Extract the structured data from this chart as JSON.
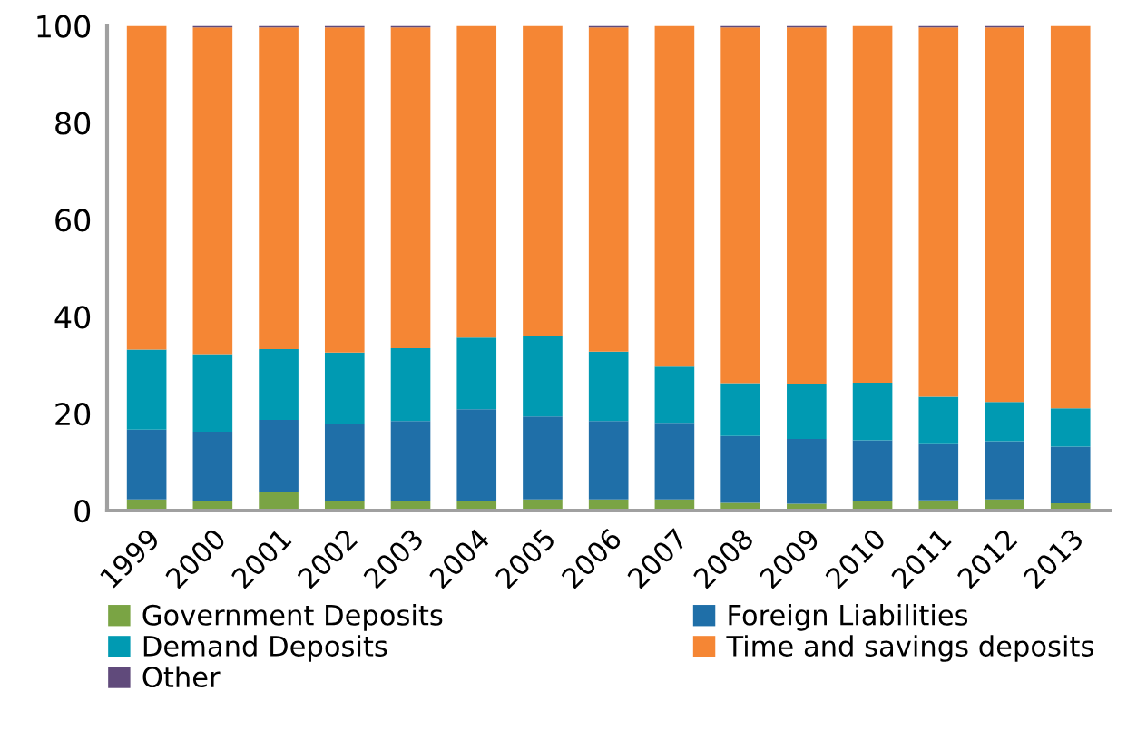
{
  "chart_data": {
    "type": "bar",
    "stacked": true,
    "categories": [
      "1999",
      "2000",
      "2001",
      "2002",
      "2003",
      "2004",
      "2005",
      "2006",
      "2007",
      "2008",
      "2009",
      "2010",
      "2011",
      "2012",
      "2013"
    ],
    "series": [
      {
        "name": "Government Deposits",
        "color": "#7aa444",
        "values": [
          2.3,
          2.0,
          3.9,
          1.9,
          2.0,
          2.0,
          2.3,
          2.3,
          2.3,
          1.6,
          1.4,
          1.9,
          2.1,
          2.3,
          1.5
        ]
      },
      {
        "name": "Foreign Liabilities",
        "color": "#1f6fa8",
        "values": [
          14.4,
          14.3,
          14.8,
          15.9,
          16.5,
          18.9,
          17.1,
          16.2,
          15.8,
          13.8,
          13.4,
          12.6,
          11.6,
          12.0,
          11.7
        ]
      },
      {
        "name": "Demand Deposits",
        "color": "#009ab2",
        "values": [
          16.5,
          16.0,
          14.6,
          14.8,
          15.0,
          14.8,
          16.6,
          14.3,
          11.6,
          10.9,
          11.4,
          11.9,
          9.8,
          8.1,
          7.9
        ]
      },
      {
        "name": "Time and savings deposits",
        "color": "#f58634",
        "values": [
          66.8,
          67.4,
          66.4,
          67.1,
          66.2,
          64.3,
          64.0,
          66.9,
          70.3,
          73.4,
          73.5,
          73.6,
          76.2,
          77.3,
          78.9
        ]
      },
      {
        "name": "Other",
        "color": "#604a7b",
        "values": [
          0,
          0.3,
          0.3,
          0.3,
          0.3,
          0,
          0,
          0.3,
          0,
          0.3,
          0.3,
          0,
          0.3,
          0.3,
          0
        ]
      }
    ],
    "ylim": [
      0,
      100
    ],
    "yticks": [
      0,
      20,
      40,
      60,
      80,
      100
    ],
    "grid": false,
    "legend": "bottom"
  }
}
